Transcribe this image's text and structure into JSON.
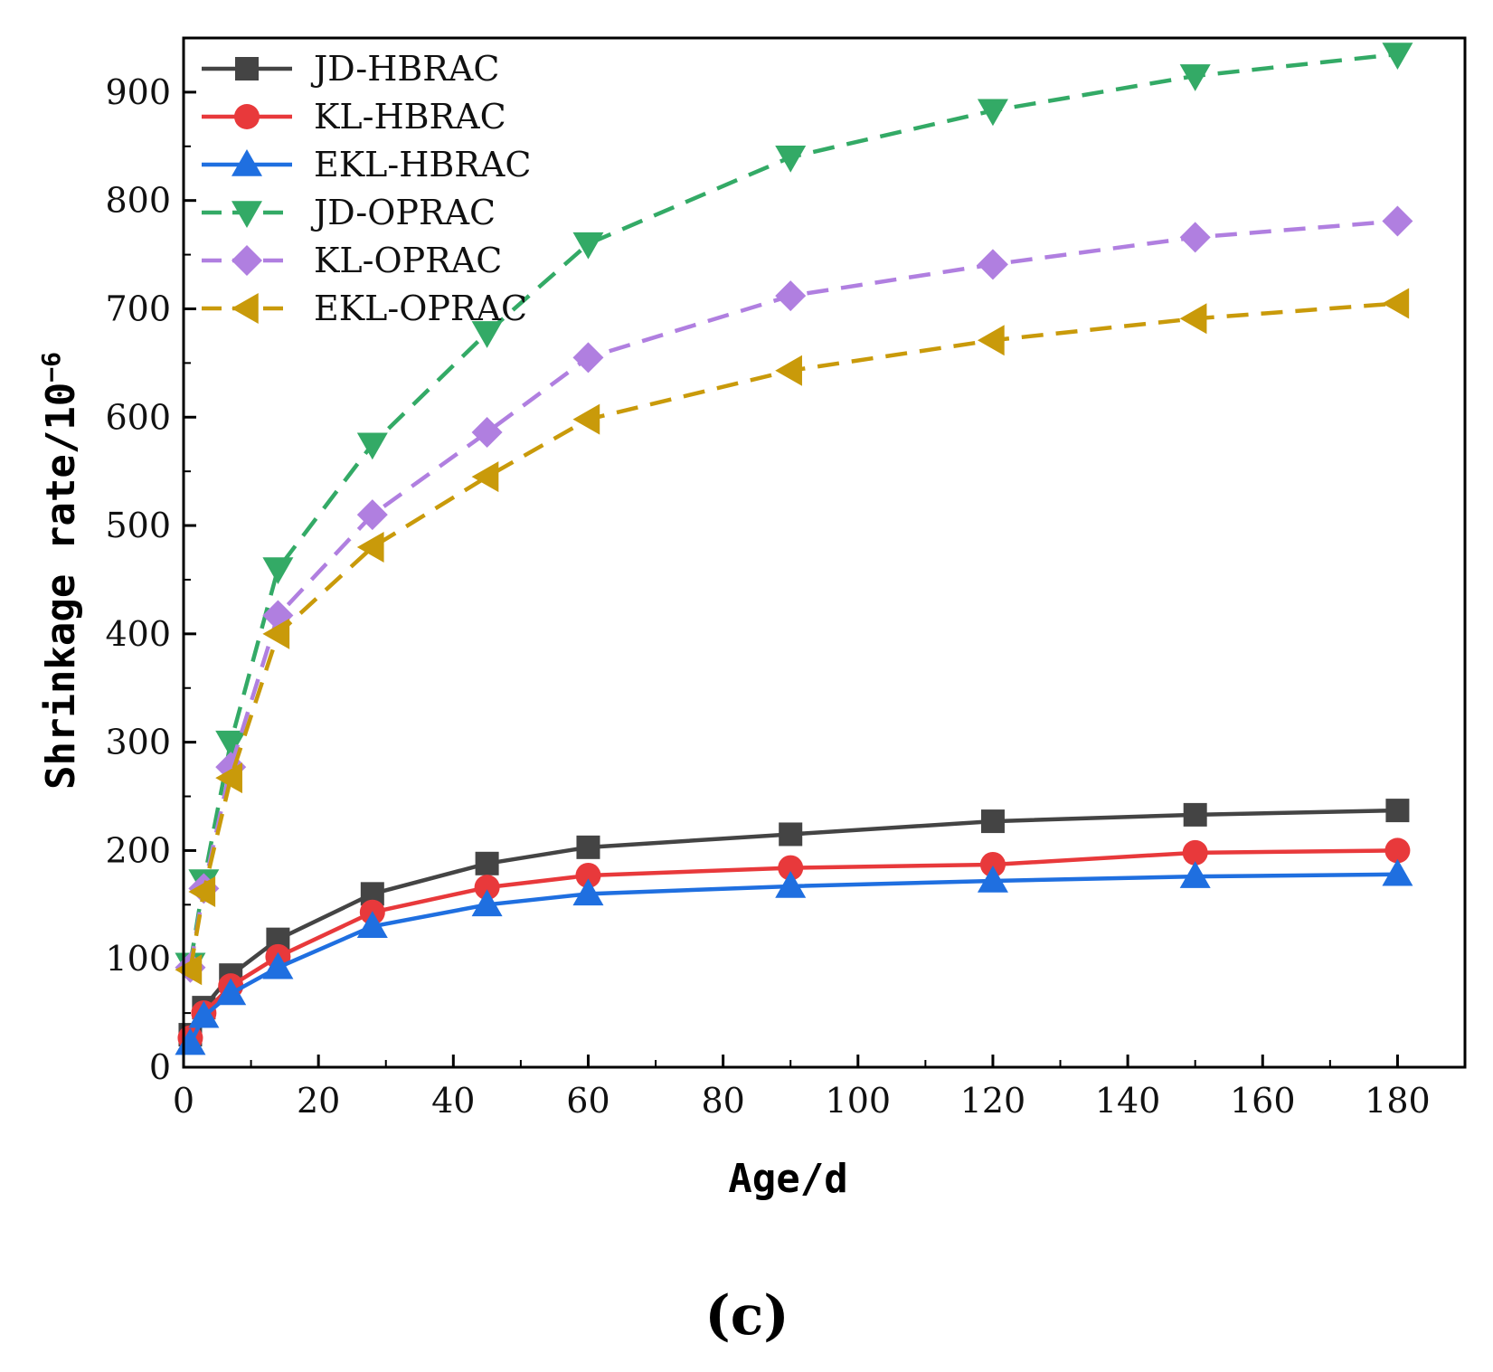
{
  "chart_data": {
    "type": "line",
    "title": "",
    "xlabel": "Age/d",
    "ylabel_base": "Shrinkage rate/10",
    "ylabel_exp": "−6",
    "xlim": [
      0,
      190
    ],
    "ylim": [
      0,
      950
    ],
    "xticks": [
      0,
      20,
      40,
      60,
      80,
      100,
      120,
      140,
      160,
      180
    ],
    "yticks": [
      0,
      100,
      200,
      300,
      400,
      500,
      600,
      700,
      800,
      900
    ],
    "legend_position": "top-left",
    "panel_label": "(c)",
    "series": [
      {
        "name": "JD-HBRAC",
        "color": "#444444",
        "marker": "square",
        "dash": "solid",
        "x": [
          1,
          3,
          7,
          14,
          28,
          45,
          60,
          90,
          120,
          150,
          180
        ],
        "y": [
          30,
          55,
          85,
          118,
          160,
          188,
          203,
          215,
          227,
          233,
          237
        ]
      },
      {
        "name": "KL-HBRAC",
        "color": "#e8393b",
        "marker": "circle",
        "dash": "solid",
        "x": [
          1,
          3,
          7,
          14,
          28,
          45,
          60,
          90,
          120,
          150,
          180
        ],
        "y": [
          27,
          50,
          75,
          102,
          143,
          166,
          177,
          184,
          187,
          198,
          200
        ]
      },
      {
        "name": "EKL-HBRAC",
        "color": "#1f6fe0",
        "marker": "triangle-up",
        "dash": "solid",
        "x": [
          1,
          3,
          7,
          14,
          28,
          45,
          60,
          90,
          120,
          150,
          180
        ],
        "y": [
          22,
          47,
          68,
          92,
          130,
          150,
          160,
          167,
          172,
          176,
          178
        ]
      },
      {
        "name": "JD-OPRAC",
        "color": "#33aa66",
        "marker": "triangle-down",
        "dash": "dashed",
        "x": [
          1,
          3,
          7,
          14,
          28,
          45,
          60,
          90,
          120,
          150,
          180
        ],
        "y": [
          95,
          172,
          300,
          460,
          575,
          678,
          760,
          840,
          883,
          915,
          935
        ]
      },
      {
        "name": "KL-OPRAC",
        "color": "#b07fe0",
        "marker": "diamond",
        "dash": "dashed",
        "x": [
          1,
          3,
          7,
          14,
          28,
          45,
          60,
          90,
          120,
          150,
          180
        ],
        "y": [
          92,
          165,
          277,
          417,
          510,
          586,
          655,
          712,
          741,
          766,
          781
        ]
      },
      {
        "name": "EKL-OPRAC",
        "color": "#c99a0a",
        "marker": "triangle-left",
        "dash": "dashed",
        "x": [
          1,
          3,
          7,
          14,
          28,
          45,
          60,
          90,
          120,
          150,
          180
        ],
        "y": [
          90,
          162,
          267,
          400,
          480,
          545,
          598,
          643,
          671,
          691,
          705
        ]
      }
    ]
  }
}
